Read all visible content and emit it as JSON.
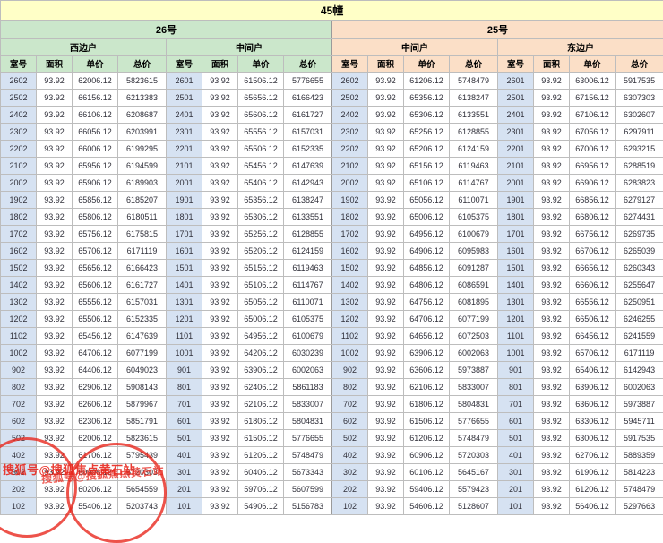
{
  "title": "45幢",
  "buildings": [
    {
      "name": "26号",
      "units": [
        "西边户",
        "中间户"
      ]
    },
    {
      "name": "25号",
      "units": [
        "中间户",
        "东边户"
      ]
    }
  ],
  "column_headers": [
    "室号",
    "面积",
    "单价",
    "总价"
  ],
  "watermark": {
    "text": "搜狐号@搜狐焦点黄石站"
  },
  "colors": {
    "title_bg": "#ffffc7",
    "building_26_bg": "#cbe7cb",
    "building_25_bg": "#fbdfc7",
    "room_cell_bg": "#d6e2f2",
    "watermark_red": "#e8281e"
  },
  "rows": [
    [
      [
        "2602",
        "93.92",
        "62006.12",
        "5823615"
      ],
      [
        "2601",
        "93.92",
        "61506.12",
        "5776655"
      ],
      [
        "2602",
        "93.92",
        "61206.12",
        "5748479"
      ],
      [
        "2601",
        "93.92",
        "63006.12",
        "5917535"
      ]
    ],
    [
      [
        "2502",
        "93.92",
        "66156.12",
        "6213383"
      ],
      [
        "2501",
        "93.92",
        "65656.12",
        "6166423"
      ],
      [
        "2502",
        "93.92",
        "65356.12",
        "6138247"
      ],
      [
        "2501",
        "93.92",
        "67156.12",
        "6307303"
      ]
    ],
    [
      [
        "2402",
        "93.92",
        "66106.12",
        "6208687"
      ],
      [
        "2401",
        "93.92",
        "65606.12",
        "6161727"
      ],
      [
        "2402",
        "93.92",
        "65306.12",
        "6133551"
      ],
      [
        "2401",
        "93.92",
        "67106.12",
        "6302607"
      ]
    ],
    [
      [
        "2302",
        "93.92",
        "66056.12",
        "6203991"
      ],
      [
        "2301",
        "93.92",
        "65556.12",
        "6157031"
      ],
      [
        "2302",
        "93.92",
        "65256.12",
        "6128855"
      ],
      [
        "2301",
        "93.92",
        "67056.12",
        "6297911"
      ]
    ],
    [
      [
        "2202",
        "93.92",
        "66006.12",
        "6199295"
      ],
      [
        "2201",
        "93.92",
        "65506.12",
        "6152335"
      ],
      [
        "2202",
        "93.92",
        "65206.12",
        "6124159"
      ],
      [
        "2201",
        "93.92",
        "67006.12",
        "6293215"
      ]
    ],
    [
      [
        "2102",
        "93.92",
        "65956.12",
        "6194599"
      ],
      [
        "2101",
        "93.92",
        "65456.12",
        "6147639"
      ],
      [
        "2102",
        "93.92",
        "65156.12",
        "6119463"
      ],
      [
        "2101",
        "93.92",
        "66956.12",
        "6288519"
      ]
    ],
    [
      [
        "2002",
        "93.92",
        "65906.12",
        "6189903"
      ],
      [
        "2001",
        "93.92",
        "65406.12",
        "6142943"
      ],
      [
        "2002",
        "93.92",
        "65106.12",
        "6114767"
      ],
      [
        "2001",
        "93.92",
        "66906.12",
        "6283823"
      ]
    ],
    [
      [
        "1902",
        "93.92",
        "65856.12",
        "6185207"
      ],
      [
        "1901",
        "93.92",
        "65356.12",
        "6138247"
      ],
      [
        "1902",
        "93.92",
        "65056.12",
        "6110071"
      ],
      [
        "1901",
        "93.92",
        "66856.12",
        "6279127"
      ]
    ],
    [
      [
        "1802",
        "93.92",
        "65806.12",
        "6180511"
      ],
      [
        "1801",
        "93.92",
        "65306.12",
        "6133551"
      ],
      [
        "1802",
        "93.92",
        "65006.12",
        "6105375"
      ],
      [
        "1801",
        "93.92",
        "66806.12",
        "6274431"
      ]
    ],
    [
      [
        "1702",
        "93.92",
        "65756.12",
        "6175815"
      ],
      [
        "1701",
        "93.92",
        "65256.12",
        "6128855"
      ],
      [
        "1702",
        "93.92",
        "64956.12",
        "6100679"
      ],
      [
        "1701",
        "93.92",
        "66756.12",
        "6269735"
      ]
    ],
    [
      [
        "1602",
        "93.92",
        "65706.12",
        "6171119"
      ],
      [
        "1601",
        "93.92",
        "65206.12",
        "6124159"
      ],
      [
        "1602",
        "93.92",
        "64906.12",
        "6095983"
      ],
      [
        "1601",
        "93.92",
        "66706.12",
        "6265039"
      ]
    ],
    [
      [
        "1502",
        "93.92",
        "65656.12",
        "6166423"
      ],
      [
        "1501",
        "93.92",
        "65156.12",
        "6119463"
      ],
      [
        "1502",
        "93.92",
        "64856.12",
        "6091287"
      ],
      [
        "1501",
        "93.92",
        "66656.12",
        "6260343"
      ]
    ],
    [
      [
        "1402",
        "93.92",
        "65606.12",
        "6161727"
      ],
      [
        "1401",
        "93.92",
        "65106.12",
        "6114767"
      ],
      [
        "1402",
        "93.92",
        "64806.12",
        "6086591"
      ],
      [
        "1401",
        "93.92",
        "66606.12",
        "6255647"
      ]
    ],
    [
      [
        "1302",
        "93.92",
        "65556.12",
        "6157031"
      ],
      [
        "1301",
        "93.92",
        "65056.12",
        "6110071"
      ],
      [
        "1302",
        "93.92",
        "64756.12",
        "6081895"
      ],
      [
        "1301",
        "93.92",
        "66556.12",
        "6250951"
      ]
    ],
    [
      [
        "1202",
        "93.92",
        "65506.12",
        "6152335"
      ],
      [
        "1201",
        "93.92",
        "65006.12",
        "6105375"
      ],
      [
        "1202",
        "93.92",
        "64706.12",
        "6077199"
      ],
      [
        "1201",
        "93.92",
        "66506.12",
        "6246255"
      ]
    ],
    [
      [
        "1102",
        "93.92",
        "65456.12",
        "6147639"
      ],
      [
        "1101",
        "93.92",
        "64956.12",
        "6100679"
      ],
      [
        "1102",
        "93.92",
        "64656.12",
        "6072503"
      ],
      [
        "1101",
        "93.92",
        "66456.12",
        "6241559"
      ]
    ],
    [
      [
        "1002",
        "93.92",
        "64706.12",
        "6077199"
      ],
      [
        "1001",
        "93.92",
        "64206.12",
        "6030239"
      ],
      [
        "1002",
        "93.92",
        "63906.12",
        "6002063"
      ],
      [
        "1001",
        "93.92",
        "65706.12",
        "6171119"
      ]
    ],
    [
      [
        "902",
        "93.92",
        "64406.12",
        "6049023"
      ],
      [
        "901",
        "93.92",
        "63906.12",
        "6002063"
      ],
      [
        "902",
        "93.92",
        "63606.12",
        "5973887"
      ],
      [
        "901",
        "93.92",
        "65406.12",
        "6142943"
      ]
    ],
    [
      [
        "802",
        "93.92",
        "62906.12",
        "5908143"
      ],
      [
        "801",
        "93.92",
        "62406.12",
        "5861183"
      ],
      [
        "802",
        "93.92",
        "62106.12",
        "5833007"
      ],
      [
        "801",
        "93.92",
        "63906.12",
        "6002063"
      ]
    ],
    [
      [
        "702",
        "93.92",
        "62606.12",
        "5879967"
      ],
      [
        "701",
        "93.92",
        "62106.12",
        "5833007"
      ],
      [
        "702",
        "93.92",
        "61806.12",
        "5804831"
      ],
      [
        "701",
        "93.92",
        "63606.12",
        "5973887"
      ]
    ],
    [
      [
        "602",
        "93.92",
        "62306.12",
        "5851791"
      ],
      [
        "601",
        "93.92",
        "61806.12",
        "5804831"
      ],
      [
        "602",
        "93.92",
        "61506.12",
        "5776655"
      ],
      [
        "601",
        "93.92",
        "63306.12",
        "5945711"
      ]
    ],
    [
      [
        "502",
        "93.92",
        "62006.12",
        "5823615"
      ],
      [
        "501",
        "93.92",
        "61506.12",
        "5776655"
      ],
      [
        "502",
        "93.92",
        "61206.12",
        "5748479"
      ],
      [
        "501",
        "93.92",
        "63006.12",
        "5917535"
      ]
    ],
    [
      [
        "402",
        "93.92",
        "61706.12",
        "5795439"
      ],
      [
        "401",
        "93.92",
        "61206.12",
        "5748479"
      ],
      [
        "402",
        "93.92",
        "60906.12",
        "5720303"
      ],
      [
        "401",
        "93.92",
        "62706.12",
        "5889359"
      ]
    ],
    [
      [
        "302",
        "93.92",
        "60906.12",
        "5720303"
      ],
      [
        "301",
        "93.92",
        "60406.12",
        "5673343"
      ],
      [
        "302",
        "93.92",
        "60106.12",
        "5645167"
      ],
      [
        "301",
        "93.92",
        "61906.12",
        "5814223"
      ]
    ],
    [
      [
        "202",
        "93.92",
        "60206.12",
        "5654559"
      ],
      [
        "201",
        "93.92",
        "59706.12",
        "5607599"
      ],
      [
        "202",
        "93.92",
        "59406.12",
        "5579423"
      ],
      [
        "201",
        "93.92",
        "61206.12",
        "5748479"
      ]
    ],
    [
      [
        "102",
        "93.92",
        "55406.12",
        "5203743"
      ],
      [
        "101",
        "93.92",
        "54906.12",
        "5156783"
      ],
      [
        "102",
        "93.92",
        "54606.12",
        "5128607"
      ],
      [
        "101",
        "93.92",
        "56406.12",
        "5297663"
      ]
    ]
  ]
}
